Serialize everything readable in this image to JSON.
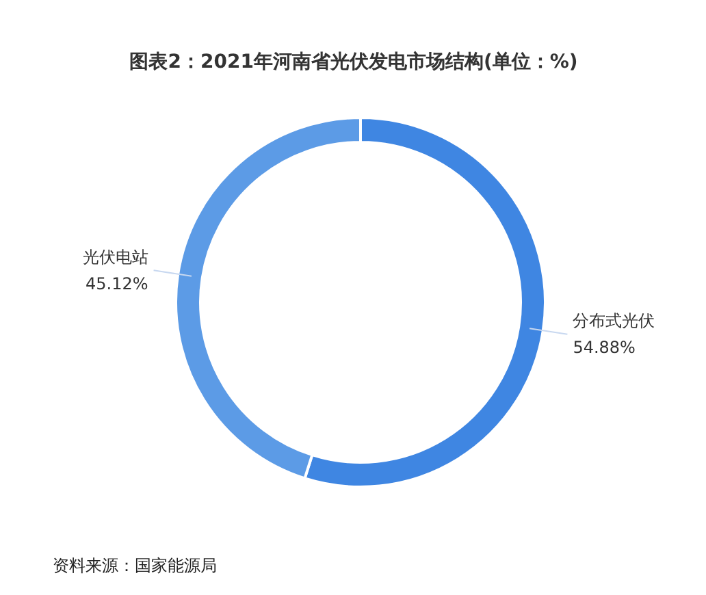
{
  "chart_data": {
    "type": "donut",
    "title": "图表2：2021年河南省光伏发电市场结构(单位：%)",
    "categories": [
      "分布式光伏",
      "光伏电站"
    ],
    "values": [
      54.88,
      45.12
    ],
    "colors": [
      "#3f86e2",
      "#5c9be6"
    ],
    "value_labels": [
      "54.88%",
      "45.12%"
    ],
    "annotations": [
      "资料来源：国家能源局"
    ]
  }
}
